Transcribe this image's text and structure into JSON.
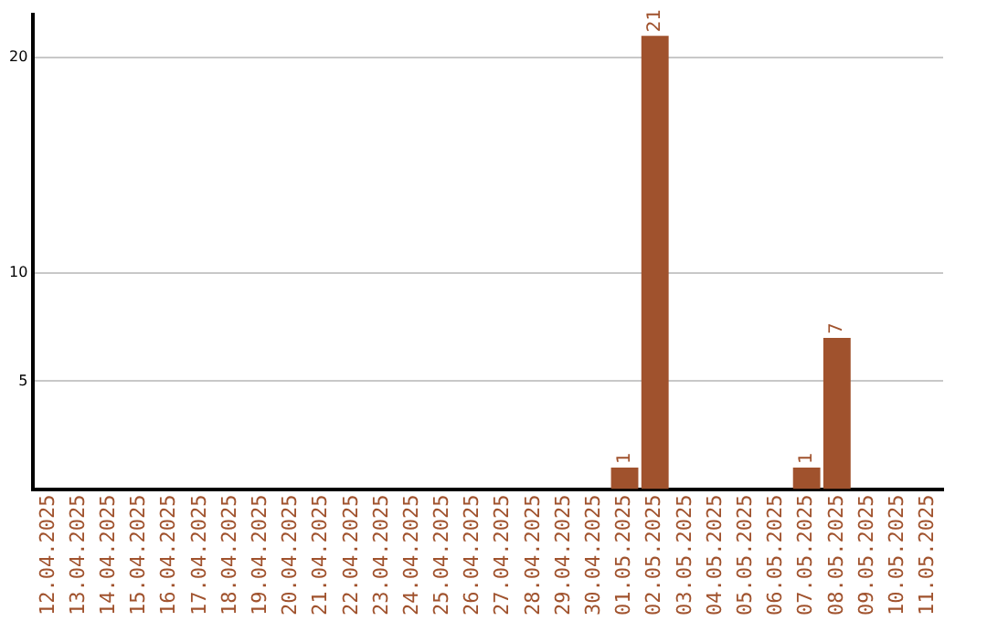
{
  "chart_data": {
    "type": "bar",
    "categories": [
      "12.04.2025",
      "13.04.2025",
      "14.04.2025",
      "15.04.2025",
      "16.04.2025",
      "17.04.2025",
      "18.04.2025",
      "19.04.2025",
      "20.04.2025",
      "21.04.2025",
      "22.04.2025",
      "23.04.2025",
      "24.04.2025",
      "25.04.2025",
      "26.04.2025",
      "27.04.2025",
      "28.04.2025",
      "29.04.2025",
      "30.04.2025",
      "01.05.2025",
      "02.05.2025",
      "03.05.2025",
      "04.05.2025",
      "05.05.2025",
      "06.05.2025",
      "07.05.2025",
      "08.05.2025",
      "09.05.2025",
      "10.05.2025",
      "11.05.2025"
    ],
    "values": [
      0,
      0,
      0,
      0,
      0,
      0,
      0,
      0,
      0,
      0,
      0,
      0,
      0,
      0,
      0,
      0,
      0,
      0,
      0,
      1,
      21,
      0,
      0,
      0,
      0,
      1,
      7,
      0,
      0,
      0
    ],
    "value_labels": [
      null,
      null,
      null,
      null,
      null,
      null,
      null,
      null,
      null,
      null,
      null,
      null,
      null,
      null,
      null,
      null,
      null,
      null,
      null,
      "1",
      "21",
      null,
      null,
      null,
      null,
      "1",
      "7",
      null,
      null,
      null
    ],
    "color": "#a0522d",
    "ylim": [
      0,
      22
    ],
    "yticks": [
      5,
      10,
      20
    ],
    "grid": "y",
    "legend": false
  }
}
